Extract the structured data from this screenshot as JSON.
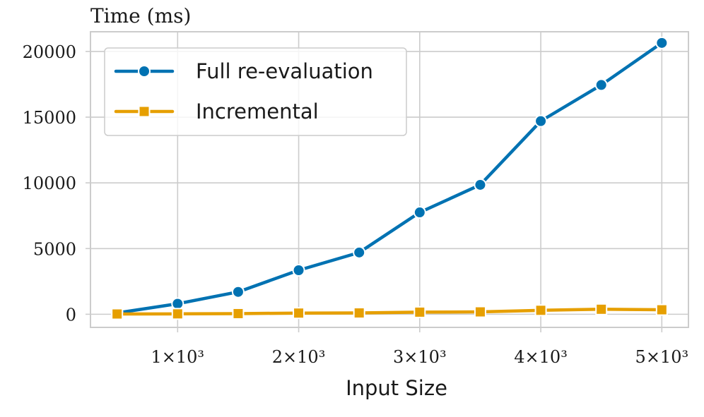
{
  "chart_data": {
    "type": "line",
    "title": "Time (ms)",
    "xlabel": "Input Size",
    "ylabel": "",
    "xlim": [
      280,
      5220
    ],
    "ylim": [
      -1000,
      21500
    ],
    "grid": true,
    "legend_position": "top-left",
    "xticks": [
      1000,
      2000,
      3000,
      4000,
      5000
    ],
    "xtick_labels": [
      "1×10³",
      "2×10³",
      "3×10³",
      "4×10³",
      "5×10³"
    ],
    "yticks": [
      0,
      5000,
      10000,
      15000,
      20000
    ],
    "ytick_labels": [
      "0",
      "5000",
      "10000",
      "15000",
      "20000"
    ],
    "x": [
      500,
      1000,
      1500,
      2000,
      2500,
      3000,
      3500,
      4000,
      4500,
      5000
    ],
    "series": [
      {
        "name": "Full re-evaluation",
        "color": "#0072b2",
        "marker": "circle",
        "values": [
          100,
          800,
          1700,
          3350,
          4700,
          7750,
          9850,
          14700,
          17450,
          20650
        ]
      },
      {
        "name": "Incremental",
        "color": "#e69f00",
        "marker": "square",
        "values": [
          20,
          30,
          50,
          90,
          100,
          160,
          180,
          300,
          380,
          340
        ]
      }
    ]
  }
}
